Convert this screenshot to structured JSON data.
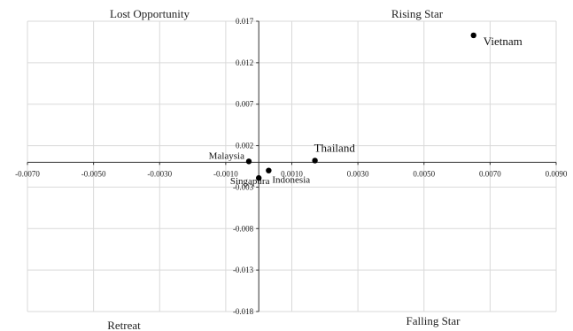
{
  "chart_data": {
    "type": "scatter",
    "title": "",
    "xlabel": "",
    "ylabel": "",
    "xlim": [
      -0.007,
      0.009
    ],
    "ylim": [
      -0.018,
      0.017
    ],
    "x_ticks": [
      "-0.0070",
      "-0.0050",
      "-0.0030",
      "-0.0010",
      "0.0010",
      "0.0030",
      "0.0050",
      "0.0070",
      "0.0090"
    ],
    "x_tick_values": [
      -0.007,
      -0.005,
      -0.003,
      -0.001,
      0.001,
      0.003,
      0.005,
      0.007,
      0.009
    ],
    "y_ticks": [
      "0.017",
      "0.012",
      "0.007",
      "0.002",
      "-0.003",
      "-0.008",
      "-0.013",
      "-0.018"
    ],
    "y_tick_values": [
      0.017,
      0.012,
      0.007,
      0.002,
      -0.003,
      -0.008,
      -0.013,
      -0.018
    ],
    "grid": true,
    "quadrants": {
      "top_left": "Lost Opportunity",
      "top_right": "Rising Star",
      "bottom_left": "Retreat",
      "bottom_right": "Falling Star"
    },
    "points": [
      {
        "label": "Vietnam",
        "x": 0.0065,
        "y": 0.0153
      },
      {
        "label": "Thailand",
        "x": 0.0017,
        "y": 0.0002
      },
      {
        "label": "Malaysia",
        "x": -0.0003,
        "y": 0.0001
      },
      {
        "label": "Indonesia",
        "x": 0.0003,
        "y": -0.001
      },
      {
        "label": "Singapura",
        "x": 0.0,
        "y": -0.0019
      }
    ],
    "marker_color": "#000000"
  }
}
